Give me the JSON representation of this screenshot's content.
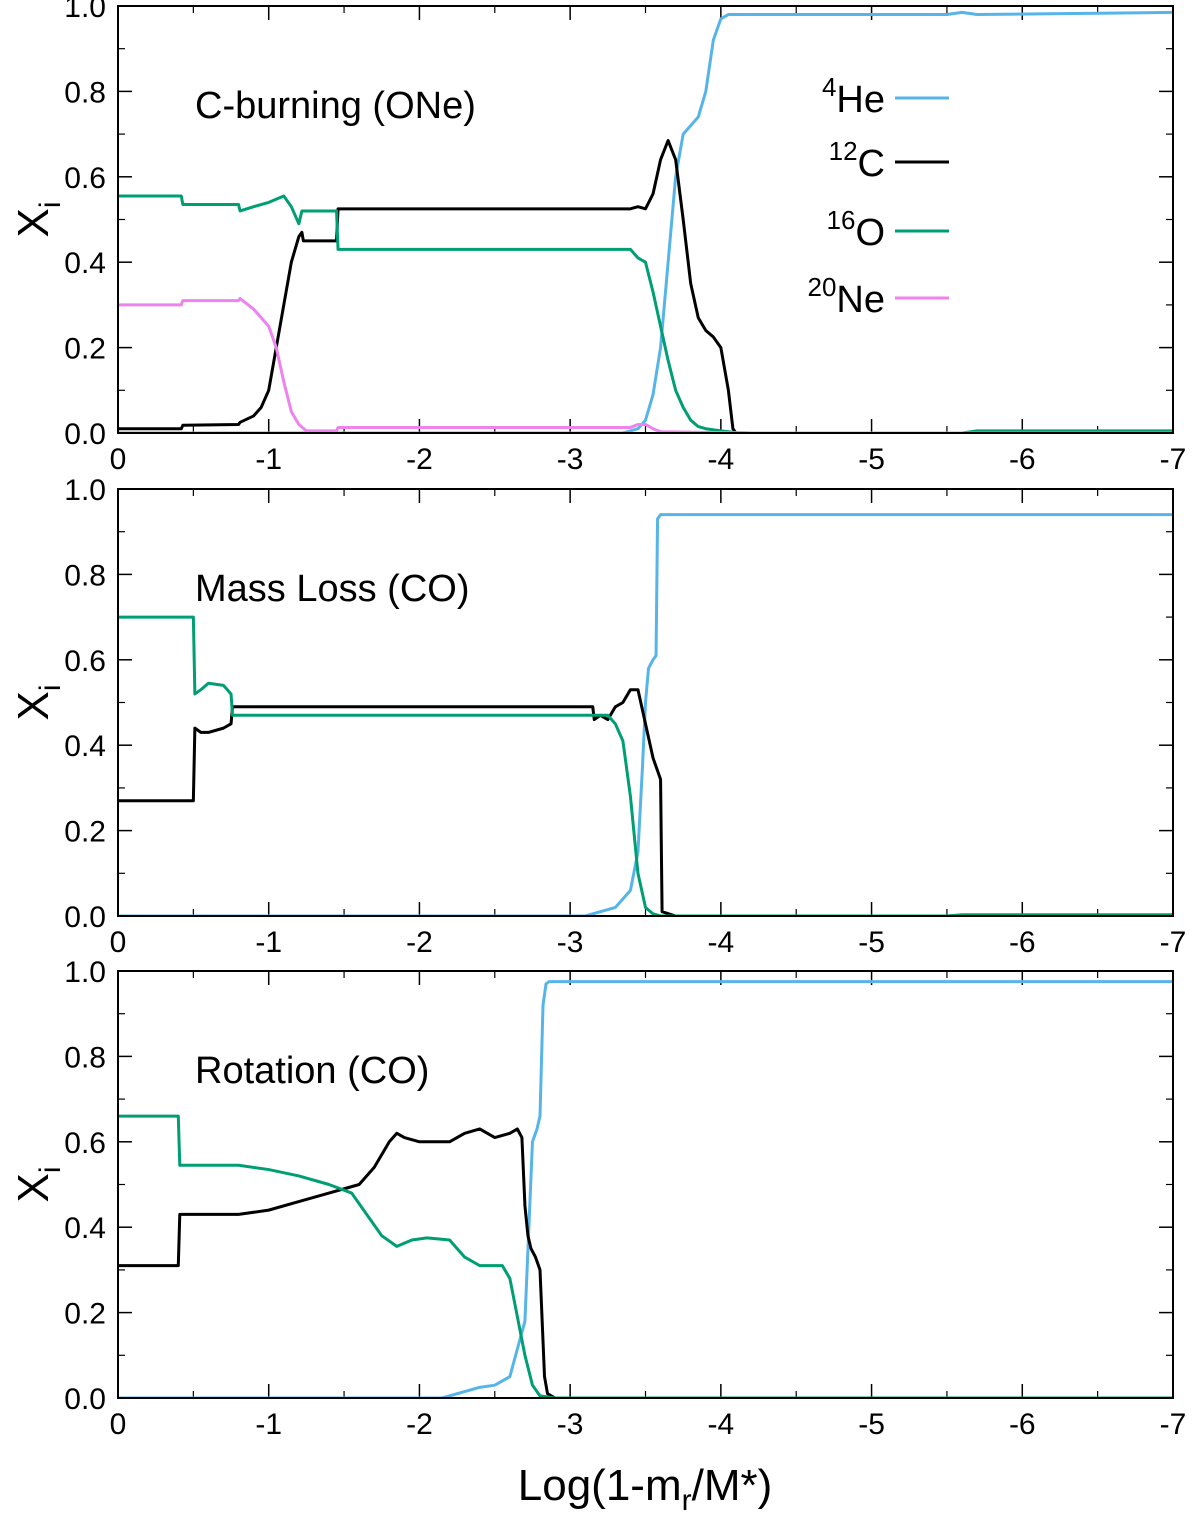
{
  "xlabel": {
    "prefix": "Log(1-m",
    "sub": "r",
    "suffix": "/M*)"
  },
  "ylabel": {
    "main": "X",
    "sub": "i"
  },
  "xlim": [
    0,
    -7
  ],
  "ylim": [
    0.0,
    1.0
  ],
  "x_ticks": [
    0,
    -1,
    -2,
    -3,
    -4,
    -5,
    -6,
    -7
  ],
  "x_tick_labels": [
    "0",
    "-1",
    "-2",
    "-3",
    "-4",
    "-5",
    "-6",
    "-7"
  ],
  "y_ticks": [
    0.0,
    0.2,
    0.4,
    0.6,
    0.8,
    1.0
  ],
  "y_tick_labels": [
    "0.0",
    "0.2",
    "0.4",
    "0.6",
    "0.8",
    "1.0"
  ],
  "colors": {
    "He4": "#56b4e9",
    "C12": "#000000",
    "O16": "#009e73",
    "Ne20": "#ee82ee"
  },
  "legend": [
    {
      "key": "He4",
      "sup": "4",
      "label": "He"
    },
    {
      "key": "C12",
      "sup": "12",
      "label": "C"
    },
    {
      "key": "O16",
      "sup": "16",
      "label": "O"
    },
    {
      "key": "Ne20",
      "sup": "20",
      "label": "Ne"
    }
  ],
  "chart_data": [
    {
      "type": "line",
      "title": "C-burning (ONe)",
      "xlabel": "Log(1-mr/M*)",
      "ylabel": "Xi",
      "xlim": [
        0,
        -7
      ],
      "ylim": [
        0,
        1
      ],
      "series": [
        {
          "name": "4He",
          "key": "He4",
          "x": [
            0,
            -3.35,
            -3.45,
            -3.5,
            -3.55,
            -3.6,
            -3.65,
            -3.7,
            -3.75,
            -3.8,
            -3.85,
            -3.9,
            -3.95,
            -4.0,
            -4.05,
            -4.1,
            -5.5,
            -5.6,
            -5.7,
            -7
          ],
          "y": [
            0,
            0,
            0.01,
            0.03,
            0.09,
            0.2,
            0.4,
            0.6,
            0.7,
            0.72,
            0.74,
            0.8,
            0.92,
            0.97,
            0.98,
            0.98,
            0.98,
            0.985,
            0.98,
            0.985
          ]
        },
        {
          "name": "12C",
          "key": "C12",
          "x": [
            0,
            -0.42,
            -0.43,
            -0.8,
            -0.81,
            -0.9,
            -0.95,
            -1.0,
            -1.05,
            -1.1,
            -1.15,
            -1.2,
            -1.22,
            -1.23,
            -1.45,
            -1.46,
            -3.4,
            -3.45,
            -3.5,
            -3.55,
            -3.6,
            -3.65,
            -3.7,
            -3.75,
            -3.8,
            -3.85,
            -3.9,
            -3.95,
            -4.0,
            -4.05,
            -4.08,
            -4.1,
            -7
          ],
          "y": [
            0.01,
            0.01,
            0.018,
            0.02,
            0.025,
            0.04,
            0.06,
            0.1,
            0.2,
            0.3,
            0.4,
            0.46,
            0.47,
            0.45,
            0.45,
            0.525,
            0.525,
            0.53,
            0.525,
            0.56,
            0.64,
            0.685,
            0.64,
            0.5,
            0.35,
            0.27,
            0.24,
            0.225,
            0.2,
            0.1,
            0.01,
            0,
            0
          ]
        },
        {
          "name": "16O",
          "key": "O16",
          "x": [
            0,
            -0.42,
            -0.43,
            -0.8,
            -0.81,
            -0.9,
            -1.0,
            -1.1,
            -1.15,
            -1.2,
            -1.22,
            -1.45,
            -1.46,
            -3.4,
            -3.45,
            -3.5,
            -3.55,
            -3.6,
            -3.65,
            -3.7,
            -3.75,
            -3.8,
            -3.85,
            -3.9,
            -4.0,
            -4.1,
            -4.2,
            -5.6,
            -5.7,
            -7
          ],
          "y": [
            0.555,
            0.555,
            0.535,
            0.535,
            0.52,
            0.53,
            0.54,
            0.555,
            0.53,
            0.49,
            0.52,
            0.52,
            0.43,
            0.43,
            0.41,
            0.4,
            0.33,
            0.25,
            0.17,
            0.1,
            0.06,
            0.03,
            0.015,
            0.01,
            0.005,
            0.001,
            0,
            0,
            0.005,
            0.005
          ]
        },
        {
          "name": "20Ne",
          "key": "Ne20",
          "x": [
            0,
            -0.42,
            -0.43,
            -0.8,
            -0.81,
            -0.9,
            -1.0,
            -1.05,
            -1.1,
            -1.15,
            -1.2,
            -1.25,
            -1.45,
            -1.46,
            -3.4,
            -3.45,
            -3.5,
            -3.55,
            -3.6,
            -4.2,
            -7
          ],
          "y": [
            0.3,
            0.3,
            0.31,
            0.31,
            0.315,
            0.29,
            0.25,
            0.2,
            0.12,
            0.05,
            0.02,
            0.005,
            0.005,
            0.013,
            0.013,
            0.02,
            0.02,
            0.01,
            0.003,
            0,
            0
          ]
        }
      ]
    },
    {
      "type": "line",
      "title": "Mass Loss (CO)",
      "xlabel": "Log(1-mr/M*)",
      "ylabel": "Xi",
      "xlim": [
        0,
        -7
      ],
      "ylim": [
        0,
        1
      ],
      "series": [
        {
          "name": "4He",
          "key": "He4",
          "x": [
            0,
            -3.1,
            -3.3,
            -3.4,
            -3.45,
            -3.48,
            -3.5,
            -3.52,
            -3.55,
            -3.57,
            -3.58,
            -3.6,
            -7
          ],
          "y": [
            0,
            0,
            0.02,
            0.06,
            0.15,
            0.35,
            0.5,
            0.58,
            0.6,
            0.61,
            0.93,
            0.94,
            0.94
          ]
        },
        {
          "name": "12C",
          "key": "C12",
          "x": [
            0,
            -0.5,
            -0.51,
            -0.55,
            -0.6,
            -0.7,
            -0.75,
            -0.76,
            -3.15,
            -3.16,
            -3.2,
            -3.25,
            -3.3,
            -3.35,
            -3.4,
            -3.45,
            -3.5,
            -3.55,
            -3.6,
            -3.61,
            -3.7,
            -7
          ],
          "y": [
            0.27,
            0.27,
            0.44,
            0.43,
            0.43,
            0.44,
            0.45,
            0.49,
            0.49,
            0.46,
            0.47,
            0.46,
            0.49,
            0.5,
            0.53,
            0.53,
            0.45,
            0.37,
            0.32,
            0.01,
            0,
            0
          ]
        },
        {
          "name": "16O",
          "key": "O16",
          "x": [
            0,
            -0.5,
            -0.51,
            -0.55,
            -0.6,
            -0.7,
            -0.75,
            -0.76,
            -3.2,
            -3.25,
            -3.3,
            -3.35,
            -3.4,
            -3.45,
            -3.5,
            -3.55,
            -3.6,
            -3.7,
            -5.5,
            -5.6,
            -7
          ],
          "y": [
            0.7,
            0.7,
            0.52,
            0.53,
            0.545,
            0.54,
            0.52,
            0.47,
            0.47,
            0.47,
            0.45,
            0.41,
            0.28,
            0.1,
            0.02,
            0.005,
            0,
            0,
            0,
            0.003,
            0.003
          ]
        }
      ]
    },
    {
      "type": "line",
      "title": "Rotation (CO)",
      "xlabel": "Log(1-mr/M*)",
      "ylabel": "Xi",
      "xlim": [
        0,
        -7
      ],
      "ylim": [
        0,
        1
      ],
      "series": [
        {
          "name": "4He",
          "key": "He4",
          "x": [
            0,
            -2.15,
            -2.2,
            -2.3,
            -2.4,
            -2.5,
            -2.6,
            -2.7,
            -2.75,
            -2.78,
            -2.8,
            -2.82,
            -2.84,
            -2.86,
            -7
          ],
          "y": [
            0,
            0,
            0.005,
            0.015,
            0.025,
            0.03,
            0.05,
            0.18,
            0.6,
            0.63,
            0.66,
            0.92,
            0.97,
            0.975,
            0.975
          ]
        },
        {
          "name": "12C",
          "key": "C12",
          "x": [
            0,
            -0.4,
            -0.41,
            -0.8,
            -1.0,
            -1.2,
            -1.4,
            -1.6,
            -1.7,
            -1.8,
            -1.85,
            -1.9,
            -2.0,
            -2.2,
            -2.3,
            -2.4,
            -2.5,
            -2.6,
            -2.65,
            -2.68,
            -2.7,
            -2.72,
            -2.74,
            -2.77,
            -2.8,
            -2.83,
            -2.85,
            -2.9,
            -7
          ],
          "y": [
            0.31,
            0.31,
            0.43,
            0.43,
            0.44,
            0.46,
            0.48,
            0.5,
            0.54,
            0.6,
            0.62,
            0.61,
            0.6,
            0.6,
            0.62,
            0.63,
            0.61,
            0.62,
            0.63,
            0.61,
            0.45,
            0.38,
            0.35,
            0.33,
            0.3,
            0.05,
            0.01,
            0,
            0
          ]
        },
        {
          "name": "16O",
          "key": "O16",
          "x": [
            0,
            -0.4,
            -0.41,
            -0.8,
            -1.0,
            -1.2,
            -1.4,
            -1.55,
            -1.65,
            -1.75,
            -1.85,
            -1.95,
            -2.05,
            -2.2,
            -2.3,
            -2.4,
            -2.55,
            -2.6,
            -2.65,
            -2.7,
            -2.75,
            -2.8,
            -2.9,
            -7
          ],
          "y": [
            0.66,
            0.66,
            0.545,
            0.545,
            0.535,
            0.52,
            0.5,
            0.48,
            0.43,
            0.38,
            0.355,
            0.37,
            0.375,
            0.37,
            0.33,
            0.31,
            0.31,
            0.28,
            0.19,
            0.1,
            0.03,
            0.005,
            0,
            0
          ]
        }
      ]
    }
  ]
}
